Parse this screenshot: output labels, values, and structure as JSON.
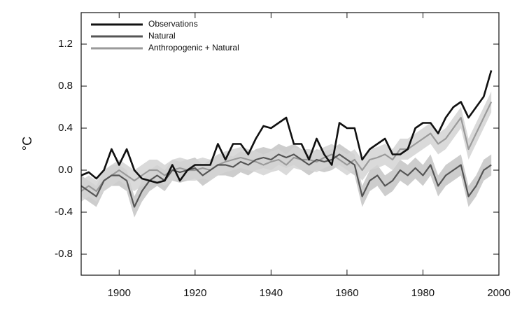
{
  "chart_data": {
    "type": "line",
    "y_label": "°C",
    "x": [
      1890,
      1892,
      1894,
      1896,
      1898,
      1900,
      1902,
      1904,
      1906,
      1908,
      1910,
      1912,
      1914,
      1916,
      1918,
      1920,
      1922,
      1924,
      1926,
      1928,
      1930,
      1932,
      1934,
      1936,
      1938,
      1940,
      1942,
      1944,
      1946,
      1948,
      1950,
      1952,
      1954,
      1956,
      1958,
      1960,
      1962,
      1964,
      1966,
      1968,
      1970,
      1972,
      1974,
      1976,
      1978,
      1980,
      1982,
      1984,
      1986,
      1988,
      1990,
      1992,
      1994,
      1996,
      1998
    ],
    "series": [
      {
        "name": "Observations",
        "color": "#111111",
        "values": [
          -0.05,
          -0.02,
          -0.08,
          0.0,
          0.2,
          0.05,
          0.2,
          0.0,
          -0.08,
          -0.1,
          -0.12,
          -0.1,
          0.05,
          -0.1,
          0.0,
          0.05,
          0.05,
          0.05,
          0.25,
          0.1,
          0.25,
          0.25,
          0.15,
          0.3,
          0.42,
          0.4,
          0.45,
          0.5,
          0.25,
          0.25,
          0.1,
          0.3,
          0.15,
          0.05,
          0.45,
          0.4,
          0.4,
          0.1,
          0.2,
          0.25,
          0.3,
          0.15,
          0.15,
          0.2,
          0.4,
          0.45,
          0.45,
          0.35,
          0.5,
          0.6,
          0.65,
          0.5,
          0.6,
          0.7,
          0.95
        ]
      },
      {
        "name": "Natural",
        "color": "#555555",
        "band_color": "#c4c4c4",
        "values": [
          -0.15,
          -0.2,
          -0.25,
          -0.1,
          -0.05,
          -0.05,
          -0.1,
          -0.35,
          -0.2,
          -0.1,
          -0.05,
          -0.1,
          0.0,
          -0.02,
          0.0,
          0.02,
          -0.05,
          0.0,
          0.05,
          0.05,
          0.03,
          0.08,
          0.05,
          0.1,
          0.12,
          0.1,
          0.15,
          0.12,
          0.15,
          0.1,
          0.05,
          0.1,
          0.08,
          0.1,
          0.15,
          0.1,
          0.05,
          -0.25,
          -0.1,
          -0.05,
          -0.15,
          -0.1,
          0.0,
          -0.05,
          0.02,
          -0.05,
          0.05,
          -0.15,
          -0.05,
          0.0,
          0.05,
          -0.25,
          -0.15,
          0.0,
          0.05
        ],
        "low": [
          -0.25,
          -0.3,
          -0.35,
          -0.2,
          -0.15,
          -0.15,
          -0.2,
          -0.45,
          -0.3,
          -0.2,
          -0.15,
          -0.2,
          -0.1,
          -0.12,
          -0.1,
          -0.08,
          -0.15,
          -0.1,
          -0.05,
          -0.05,
          -0.07,
          -0.02,
          -0.05,
          0.0,
          0.02,
          0.0,
          0.05,
          0.02,
          0.05,
          0.0,
          -0.05,
          0.0,
          -0.02,
          0.0,
          0.05,
          0.0,
          -0.05,
          -0.35,
          -0.2,
          -0.15,
          -0.25,
          -0.2,
          -0.1,
          -0.15,
          -0.08,
          -0.15,
          -0.05,
          -0.25,
          -0.15,
          -0.1,
          -0.05,
          -0.35,
          -0.25,
          -0.1,
          -0.05
        ],
        "high": [
          -0.05,
          -0.1,
          -0.15,
          0.0,
          0.05,
          0.05,
          0.0,
          -0.25,
          -0.1,
          0.0,
          0.05,
          0.0,
          0.1,
          0.08,
          0.1,
          0.12,
          0.05,
          0.1,
          0.15,
          0.15,
          0.13,
          0.18,
          0.15,
          0.2,
          0.22,
          0.2,
          0.25,
          0.22,
          0.25,
          0.2,
          0.15,
          0.2,
          0.18,
          0.2,
          0.25,
          0.2,
          0.15,
          -0.15,
          0.0,
          0.05,
          -0.05,
          0.0,
          0.1,
          0.05,
          0.12,
          0.05,
          0.15,
          -0.05,
          0.05,
          0.1,
          0.15,
          -0.15,
          -0.05,
          0.1,
          0.15
        ]
      },
      {
        "name": "Anthropogenic + Natural",
        "color": "#9a9a9a",
        "band_color": "#d4d4d4",
        "values": [
          -0.2,
          -0.15,
          -0.2,
          -0.1,
          -0.05,
          0.0,
          -0.05,
          -0.1,
          -0.05,
          0.0,
          0.0,
          -0.05,
          0.0,
          0.02,
          0.0,
          0.0,
          0.02,
          0.0,
          0.05,
          0.08,
          0.1,
          0.12,
          0.1,
          0.08,
          0.05,
          0.08,
          0.1,
          0.05,
          0.12,
          0.1,
          0.1,
          0.08,
          0.12,
          0.15,
          0.1,
          0.05,
          0.1,
          0.0,
          0.1,
          0.12,
          0.15,
          0.1,
          0.2,
          0.2,
          0.25,
          0.3,
          0.35,
          0.25,
          0.3,
          0.4,
          0.5,
          0.2,
          0.35,
          0.5,
          0.65
        ],
        "low": [
          -0.3,
          -0.25,
          -0.3,
          -0.2,
          -0.15,
          -0.1,
          -0.15,
          -0.2,
          -0.15,
          -0.1,
          -0.1,
          -0.15,
          -0.1,
          -0.08,
          -0.1,
          -0.1,
          -0.08,
          -0.1,
          -0.05,
          -0.02,
          0.0,
          0.02,
          0.0,
          -0.02,
          -0.05,
          -0.02,
          0.0,
          -0.05,
          0.02,
          0.0,
          0.0,
          -0.02,
          0.02,
          0.05,
          0.0,
          -0.05,
          0.0,
          -0.1,
          0.0,
          0.02,
          0.05,
          0.0,
          0.1,
          0.1,
          0.15,
          0.2,
          0.25,
          0.15,
          0.2,
          0.3,
          0.4,
          0.1,
          0.25,
          0.4,
          0.55
        ],
        "high": [
          -0.1,
          -0.05,
          -0.1,
          0.0,
          0.05,
          0.1,
          0.05,
          0.0,
          0.05,
          0.1,
          0.1,
          0.05,
          0.1,
          0.12,
          0.1,
          0.1,
          0.12,
          0.1,
          0.15,
          0.18,
          0.2,
          0.22,
          0.2,
          0.18,
          0.15,
          0.18,
          0.2,
          0.15,
          0.22,
          0.2,
          0.2,
          0.18,
          0.22,
          0.25,
          0.2,
          0.15,
          0.2,
          0.1,
          0.2,
          0.22,
          0.25,
          0.2,
          0.3,
          0.3,
          0.35,
          0.4,
          0.45,
          0.35,
          0.4,
          0.5,
          0.6,
          0.3,
          0.45,
          0.6,
          0.75
        ]
      }
    ],
    "xlim": [
      1890,
      2000
    ],
    "xticks": [
      1900,
      1920,
      1940,
      1960,
      1980,
      2000
    ],
    "ylim": [
      -1.0,
      1.5
    ],
    "yticks": [
      -0.8,
      -0.4,
      {
        "value": 0,
        "label": "0.0"
      },
      0.4,
      0.8,
      1.2
    ],
    "legend": "upper left"
  }
}
